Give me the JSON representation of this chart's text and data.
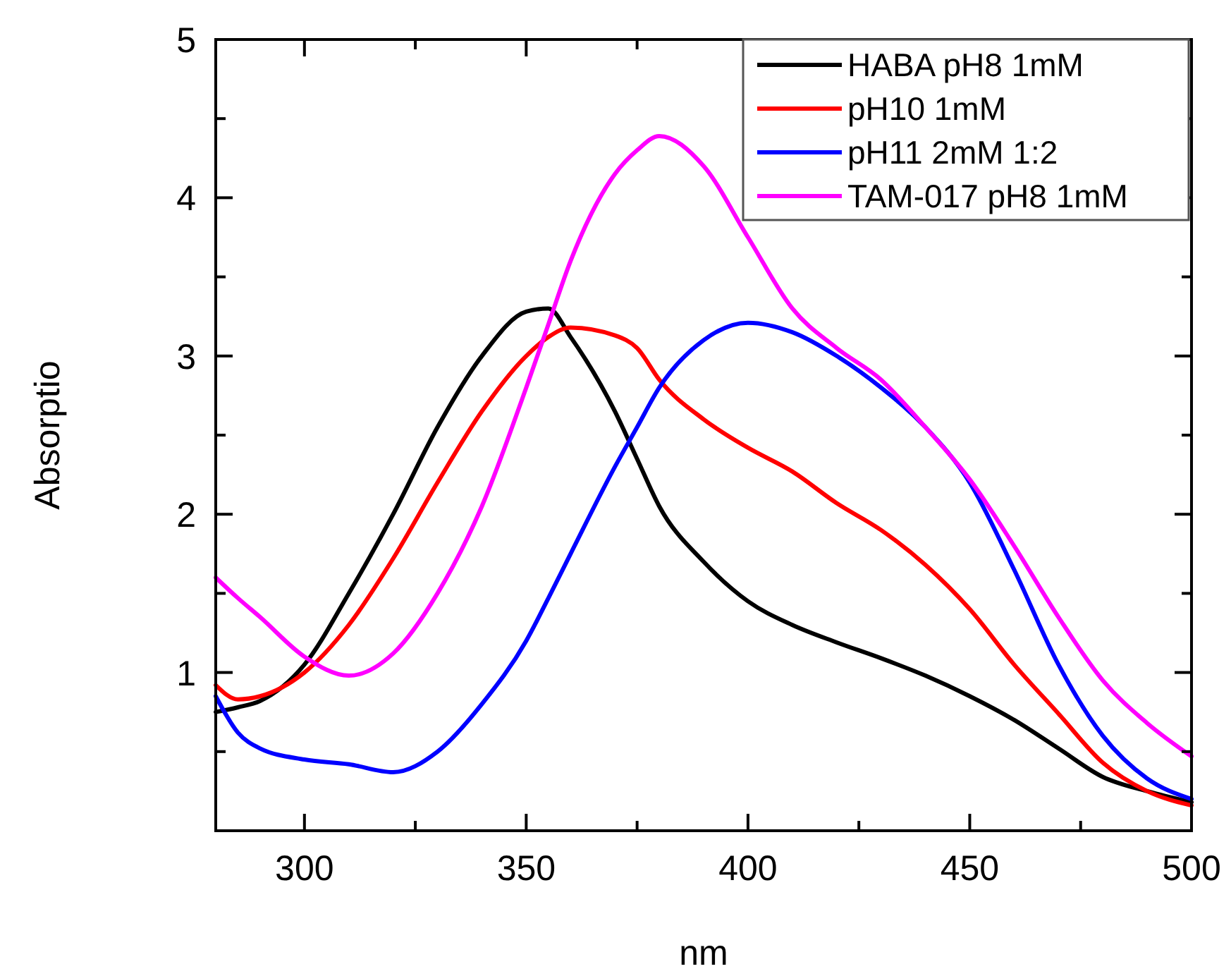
{
  "chart_data": {
    "type": "line",
    "xlabel": "nm",
    "ylabel": "Absorptio",
    "xlim": [
      280,
      500
    ],
    "ylim": [
      0,
      5
    ],
    "xticks": [
      300,
      {
        "value": 325,
        "label": null
      },
      350,
      {
        "value": 375,
        "label": null
      },
      400,
      {
        "value": 425,
        "label": null
      },
      450,
      {
        "value": 475,
        "label": null
      },
      500
    ],
    "yticks": [
      {
        "value": 0.5,
        "label": null
      },
      1,
      {
        "value": 1.5,
        "label": null
      },
      2,
      {
        "value": 2.5,
        "label": null
      },
      3,
      {
        "value": 3.5,
        "label": null
      },
      4,
      {
        "value": 4.5,
        "label": null
      },
      5
    ],
    "grid": false,
    "legend": "top right",
    "marker": "none",
    "line_style": "solid",
    "x": [
      280,
      285,
      290,
      300,
      310,
      320,
      330,
      340,
      350,
      355,
      360,
      370,
      375,
      380,
      390,
      400,
      410,
      420,
      430,
      440,
      450,
      460,
      470,
      480,
      490,
      500
    ],
    "series": [
      {
        "name": "HABA pH8 1mM",
        "color": "#000000",
        "values": [
          0.75,
          0.78,
          0.82,
          1.05,
          1.5,
          2.0,
          2.55,
          3.0,
          3.28,
          3.3,
          3.12,
          2.65,
          2.35,
          2.05,
          1.7,
          1.45,
          1.3,
          1.19,
          1.09,
          0.98,
          0.85,
          0.7,
          0.52,
          0.34,
          0.25,
          0.18
        ]
      },
      {
        "name": "pH10 1mM",
        "color": "#ff0000",
        "values": [
          0.92,
          0.83,
          0.85,
          1.0,
          1.3,
          1.72,
          2.2,
          2.65,
          3.0,
          3.12,
          3.18,
          3.13,
          3.05,
          2.85,
          2.6,
          2.42,
          2.27,
          2.07,
          1.9,
          1.68,
          1.4,
          1.05,
          0.74,
          0.43,
          0.25,
          0.16
        ]
      },
      {
        "name": "pH11 2mM 1:2",
        "color": "#0000ff",
        "values": [
          0.85,
          0.62,
          0.52,
          0.45,
          0.42,
          0.37,
          0.5,
          0.8,
          1.2,
          1.47,
          1.75,
          2.3,
          2.55,
          2.8,
          3.1,
          3.21,
          3.15,
          3.0,
          2.8,
          2.55,
          2.2,
          1.65,
          1.05,
          0.6,
          0.33,
          0.2
        ]
      },
      {
        "name": "TAM-017 pH8 1mM",
        "color": "#ff00ff",
        "values": [
          1.6,
          1.47,
          1.35,
          1.1,
          0.98,
          1.12,
          1.5,
          2.05,
          2.8,
          3.2,
          3.6,
          4.15,
          4.3,
          4.39,
          4.2,
          3.75,
          3.3,
          3.05,
          2.85,
          2.55,
          2.22,
          1.8,
          1.35,
          0.95,
          0.68,
          0.47
        ]
      }
    ]
  }
}
